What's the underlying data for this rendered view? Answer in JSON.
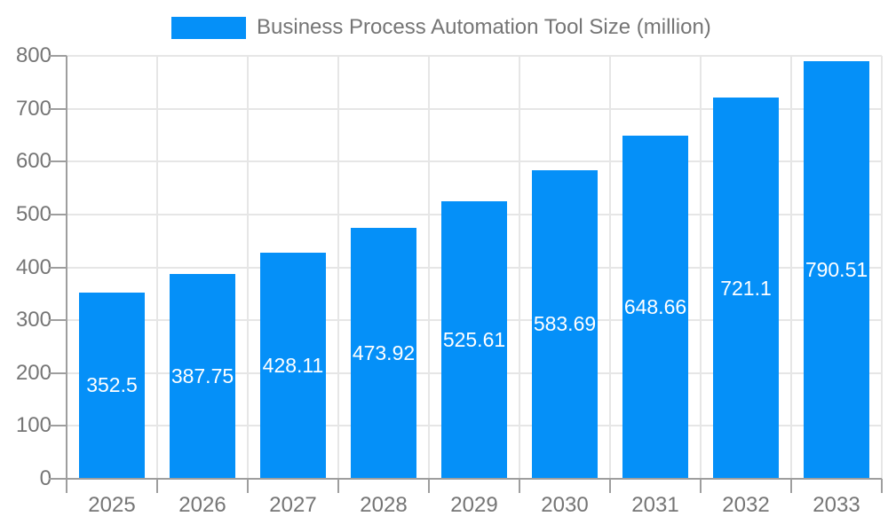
{
  "chart_data": {
    "type": "bar",
    "title": "",
    "legend_label": "Business Process Automation Tool Size (million)",
    "legend_position": "top",
    "categories": [
      "2025",
      "2026",
      "2027",
      "2028",
      "2029",
      "2030",
      "2031",
      "2032",
      "2033"
    ],
    "values": [
      352.5,
      387.75,
      428.11,
      473.92,
      525.61,
      583.69,
      648.66,
      721.1,
      790.51
    ],
    "value_labels": [
      "352.5",
      "387.75",
      "428.11",
      "473.92",
      "525.61",
      "583.69",
      "648.66",
      "721.1",
      "790.51"
    ],
    "xlabel": "",
    "ylabel": "",
    "ylim": [
      0,
      800
    ],
    "ytick_labels": [
      "0",
      "100",
      "200",
      "300",
      "400",
      "500",
      "600",
      "700",
      "800"
    ],
    "grid": true,
    "colors": {
      "bar": "#0590F8",
      "grid": "#E6E6E6",
      "axis": "#9E9E9E",
      "tick_text": "#757575",
      "value_label": "#FFFFFF",
      "background": "#FFFFFF"
    }
  }
}
